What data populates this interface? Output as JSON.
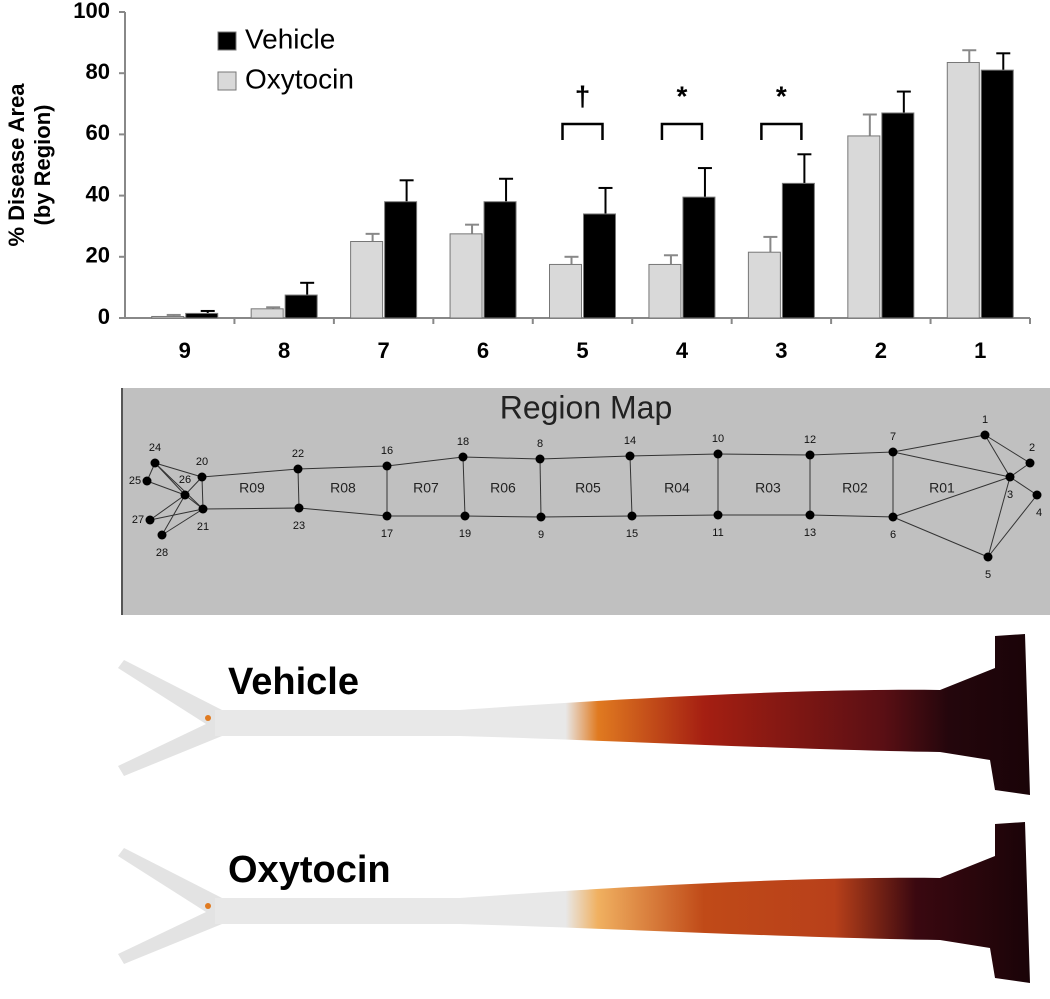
{
  "chart_data": {
    "type": "bar",
    "ylabel": [
      "% Disease Area",
      "(by Region)"
    ],
    "categories": [
      "9",
      "8",
      "7",
      "6",
      "5",
      "4",
      "3",
      "2",
      "1"
    ],
    "series": [
      {
        "name": "Vehicle",
        "color": "#000000",
        "values": [
          1.5,
          7.5,
          38,
          38,
          34,
          39.5,
          44,
          67,
          81
        ],
        "errors": [
          0.8,
          4,
          7,
          7.5,
          8.5,
          9.5,
          9.5,
          7,
          5.5
        ]
      },
      {
        "name": "Oxytocin",
        "color": "#d9d9d9",
        "values": [
          0.5,
          3,
          25,
          27.5,
          17.5,
          17.5,
          21.5,
          59.5,
          83.5
        ],
        "errors": [
          0.5,
          0.5,
          2.5,
          3,
          2.5,
          3,
          5,
          7,
          4
        ]
      }
    ],
    "ylim": [
      0,
      100
    ],
    "yticks": [
      0,
      20,
      40,
      60,
      80,
      100
    ],
    "grid": false,
    "legend": "top-left",
    "annotations": [
      {
        "text": "†",
        "category": "5"
      },
      {
        "text": "*",
        "category": "4"
      },
      {
        "text": "*",
        "category": "3"
      }
    ]
  },
  "region_map": {
    "title": "Region Map",
    "nodes": [
      "1",
      "2",
      "3",
      "4",
      "5",
      "6",
      "7",
      "8",
      "9",
      "10",
      "11",
      "12",
      "13",
      "14",
      "15",
      "16",
      "17",
      "18",
      "19",
      "20",
      "21",
      "22",
      "23",
      "24",
      "25",
      "26",
      "27",
      "28"
    ],
    "regions": [
      "R01",
      "R02",
      "R03",
      "R04",
      "R05",
      "R06",
      "R07",
      "R08",
      "R09"
    ]
  },
  "images": [
    {
      "label": "Vehicle"
    },
    {
      "label": "Oxytocin"
    }
  ]
}
